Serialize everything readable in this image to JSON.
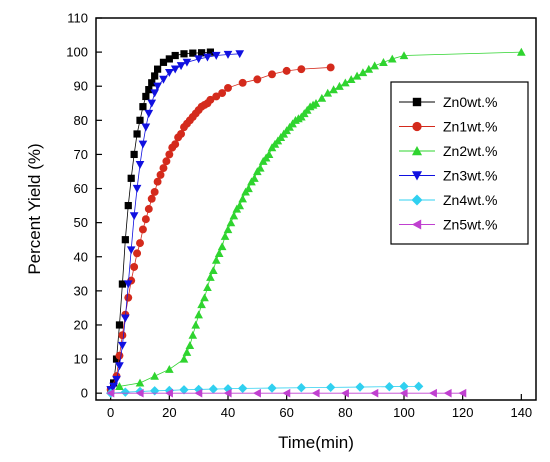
{
  "chart_data": {
    "type": "scatter",
    "xlabel": "Time(min)",
    "ylabel": "Percent  Yield (%)",
    "xlim": [
      -5,
      145
    ],
    "ylim": [
      -2,
      110
    ],
    "xticks": [
      0,
      20,
      40,
      60,
      80,
      100,
      120,
      140
    ],
    "yticks": [
      0,
      10,
      20,
      30,
      40,
      50,
      60,
      70,
      80,
      90,
      100,
      110
    ],
    "grid": false,
    "legend_position": "right",
    "series": [
      {
        "name": "Zn0wt.%",
        "color": "#000000",
        "marker": "square",
        "x": [
          0,
          1,
          2,
          3,
          4,
          5,
          6,
          7,
          8,
          9,
          10,
          11,
          12,
          13,
          14,
          15,
          16,
          18,
          20,
          22,
          25,
          28,
          31,
          34
        ],
        "y": [
          1,
          3,
          10,
          20,
          32,
          45,
          55,
          63,
          70,
          76,
          80,
          84,
          87,
          89,
          91,
          93,
          95,
          97,
          98,
          99,
          99.5,
          99.7,
          99.8,
          100
        ]
      },
      {
        "name": "Zn1wt.%",
        "color": "#d42a1c",
        "marker": "circle",
        "x": [
          0,
          2,
          3,
          4,
          5,
          6,
          7,
          8,
          9,
          10,
          11,
          12,
          13,
          14,
          15,
          16,
          17,
          18,
          19,
          20,
          21,
          22,
          23,
          24,
          25,
          26,
          27,
          28,
          29,
          30,
          31,
          32,
          33,
          34,
          36,
          38,
          40,
          45,
          50,
          55,
          60,
          65,
          75
        ],
        "y": [
          1,
          5,
          11,
          17,
          23,
          28,
          33,
          37,
          41,
          44,
          48,
          51,
          54,
          57,
          59,
          62,
          64,
          66,
          68,
          70,
          72,
          73,
          75,
          76,
          78,
          79,
          80,
          81,
          82,
          83,
          84,
          84.5,
          85,
          86,
          87,
          88,
          89.5,
          91,
          92,
          93.5,
          94.5,
          95,
          95.5
        ]
      },
      {
        "name": "Zn2wt.%",
        "color": "#2fd42f",
        "marker": "triangle-up",
        "x": [
          3,
          10,
          15,
          20,
          25,
          26,
          27,
          28,
          29,
          30,
          31,
          32,
          33,
          34,
          35,
          36,
          37,
          38,
          39,
          40,
          41,
          42,
          43,
          44,
          45,
          46,
          47,
          48,
          49,
          50,
          51,
          52,
          53,
          54,
          55,
          56,
          57,
          58,
          59,
          60,
          61,
          62,
          63,
          64,
          65,
          66,
          67,
          68,
          69,
          70,
          72,
          74,
          76,
          78,
          80,
          82,
          84,
          86,
          88,
          90,
          93,
          96,
          100,
          140
        ],
        "y": [
          2,
          3,
          5,
          7,
          10,
          12,
          14,
          17,
          20,
          23,
          26,
          28,
          31,
          34,
          36,
          39,
          41,
          43,
          46,
          48,
          50,
          52,
          54,
          55,
          57,
          59,
          60,
          62,
          63,
          65,
          66,
          68,
          69,
          70,
          72,
          73,
          74,
          75,
          76,
          77,
          78,
          79,
          80,
          80.5,
          81,
          82,
          83,
          84,
          84.5,
          85,
          86.5,
          88,
          89,
          90,
          91,
          92,
          93,
          94,
          95,
          96,
          97,
          98,
          99,
          100
        ]
      },
      {
        "name": "Zn3wt.%",
        "color": "#1010e0",
        "marker": "triangle-down",
        "x": [
          0,
          1,
          2,
          3,
          4,
          5,
          6,
          7,
          8,
          9,
          10,
          11,
          12,
          13,
          14,
          15,
          16,
          18,
          20,
          22,
          24,
          26,
          30,
          33,
          36,
          40,
          44
        ],
        "y": [
          1,
          2,
          4,
          8,
          14,
          22,
          32,
          42,
          52,
          60,
          67,
          73,
          78,
          82,
          85,
          88,
          90,
          92,
          94,
          95,
          96,
          97,
          98,
          98.5,
          99,
          99.3,
          99.5
        ]
      },
      {
        "name": "Zn4wt.%",
        "color": "#30d0f0",
        "marker": "diamond",
        "x": [
          0,
          5,
          10,
          15,
          20,
          25,
          30,
          35,
          40,
          45,
          55,
          65,
          75,
          85,
          95,
          100,
          105
        ],
        "y": [
          0,
          0.3,
          0.5,
          0.7,
          0.8,
          1,
          1.1,
          1.2,
          1.3,
          1.4,
          1.5,
          1.6,
          1.7,
          1.8,
          1.9,
          2,
          2
        ]
      },
      {
        "name": "Zn5wt.%",
        "color": "#c040d0",
        "marker": "triangle-left",
        "x": [
          0,
          10,
          20,
          30,
          40,
          50,
          60,
          70,
          80,
          90,
          100,
          110,
          115,
          120
        ],
        "y": [
          0,
          0,
          0,
          0,
          0,
          0,
          0,
          0,
          0,
          0,
          0,
          0,
          0,
          0
        ]
      }
    ]
  }
}
